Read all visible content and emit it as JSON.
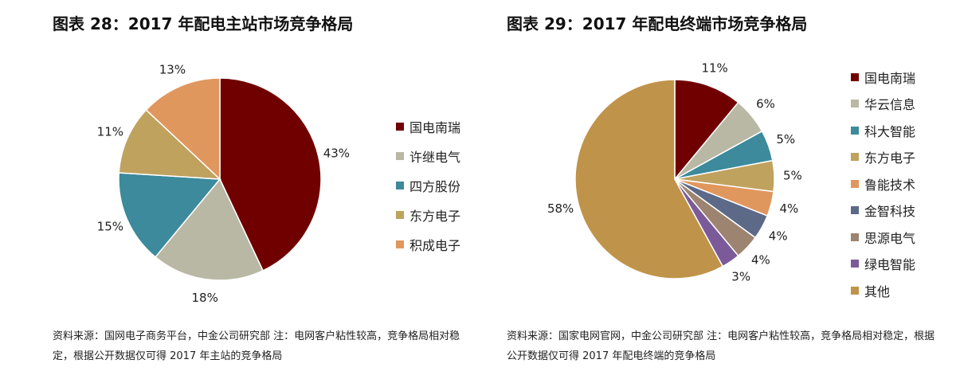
{
  "chart_data": [
    {
      "type": "pie",
      "title": "图表 28：2017 年配电主站市场竞争格局",
      "categories": [
        "国电南瑞",
        "许继电气",
        "四方股份",
        "东方电子",
        "积成电子"
      ],
      "values": [
        43,
        18,
        15,
        11,
        13
      ],
      "labels": [
        "43%",
        "18%",
        "15%",
        "11%",
        "13%"
      ],
      "colors": [
        "#700000",
        "#b9b8a4",
        "#3c8a9c",
        "#bfa25e",
        "#e0975e"
      ],
      "legend": "right",
      "note": "资料来源：国网电子商务平台，中金公司研究部 注：电网客户粘性较高，竞争格局相对稳定，根据公开数据仅可得 2017 年主站的竞争格局"
    },
    {
      "type": "pie",
      "title": "图表 29：2017 年配电终端市场竞争格局",
      "categories": [
        "国电南瑞",
        "华云信息",
        "科大智能",
        "东方电子",
        "鲁能技术",
        "金智科技",
        "思源电气",
        "绿电智能",
        "其他"
      ],
      "values": [
        11,
        6,
        5,
        5,
        4,
        4,
        4,
        3,
        58
      ],
      "labels": [
        "11%",
        "6%",
        "5%",
        "5%",
        "4%",
        "4%",
        "4%",
        "3%",
        "58%"
      ],
      "colors": [
        "#700000",
        "#b9b8a4",
        "#3c8a9c",
        "#bfa25e",
        "#e0975e",
        "#5c6a88",
        "#9c8470",
        "#7b5a9a",
        "#c0934a"
      ],
      "legend": "right",
      "note": "资料来源：国家电网官网，中金公司研究部 注：电网客户粘性较高，竞争格局相对稳定，根据公开数据仅可得 2017 年配电终端的竞争格局"
    }
  ]
}
